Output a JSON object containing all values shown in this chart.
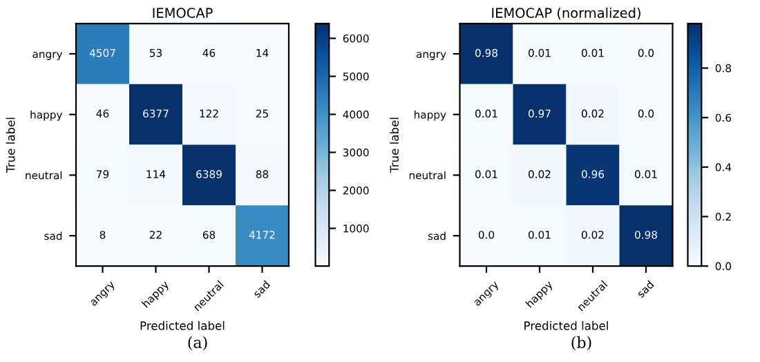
{
  "chart_data": [
    {
      "type": "heatmap",
      "title": "IEMOCAP",
      "xlabel": "Predicted label",
      "ylabel": "True label",
      "categories": [
        "angry",
        "happy",
        "neutral",
        "sad"
      ],
      "y_categories": [
        "angry",
        "happy",
        "neutral",
        "sad"
      ],
      "cells": [
        [
          4507,
          53,
          46,
          14
        ],
        [
          46,
          6377,
          122,
          25
        ],
        [
          79,
          114,
          6389,
          88
        ],
        [
          8,
          22,
          68,
          4172
        ]
      ],
      "data_labels": true,
      "clim": [
        8,
        6389
      ],
      "cticks": [
        1000,
        2000,
        3000,
        4000,
        5000,
        6000
      ],
      "annotations": [
        "(a)"
      ]
    },
    {
      "type": "heatmap",
      "title": "IEMOCAP (normalized)",
      "xlabel": "Predicted label",
      "ylabel": "True label",
      "categories": [
        "angry",
        "happy",
        "neutral",
        "sad"
      ],
      "y_categories": [
        "angry",
        "happy",
        "neutral",
        "sad"
      ],
      "cells": [
        [
          0.98,
          0.01,
          0.01,
          0.0
        ],
        [
          0.01,
          0.97,
          0.02,
          0.0
        ],
        [
          0.01,
          0.02,
          0.96,
          0.01
        ],
        [
          0.0,
          0.01,
          0.02,
          0.98
        ]
      ],
      "cell_labels": [
        [
          "0.98",
          "0.01",
          "0.01",
          "0.0"
        ],
        [
          "0.01",
          "0.97",
          "0.02",
          "0.0"
        ],
        [
          "0.01",
          "0.02",
          "0.96",
          "0.01"
        ],
        [
          "0.0",
          "0.01",
          "0.02",
          "0.98"
        ]
      ],
      "clim": [
        0.0,
        0.98
      ],
      "cticks": [
        {
          "value": 0,
          "label": "0.0"
        },
        0.2,
        0.4,
        0.6,
        0.8
      ],
      "annotations": [
        "(b)"
      ]
    }
  ]
}
